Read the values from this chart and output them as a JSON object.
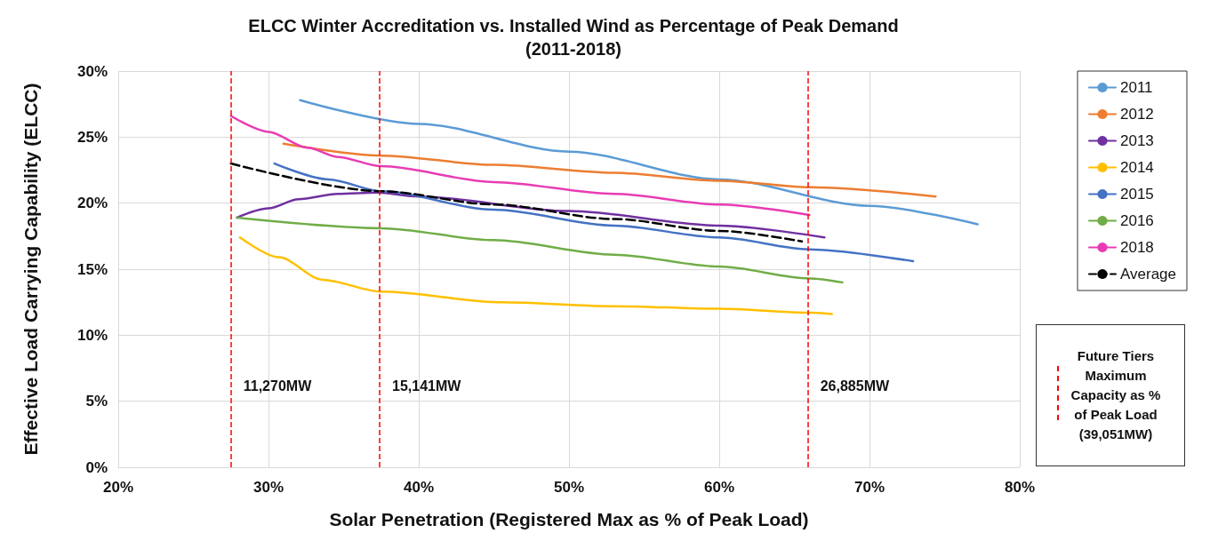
{
  "chart_data": {
    "type": "line",
    "title": "ELCC Winter Accreditation vs. Installed Wind as Percentage of Peak Demand",
    "subtitle": "(2011-2018)",
    "xlabel": "Solar Penetration (Registered Max as % of Peak Load)",
    "ylabel": "Effective Load Carrying Capability (ELCC)",
    "xlim": [
      20,
      80
    ],
    "xticks": [
      {
        "value": 20,
        "label": "20%"
      },
      {
        "value": 30,
        "label": "30%"
      },
      {
        "value": 40,
        "label": "40%"
      },
      {
        "value": 50,
        "label": "50%"
      },
      {
        "value": 60,
        "label": "60%"
      },
      {
        "value": 70,
        "label": "70%"
      },
      {
        "value": 80,
        "label": "80%"
      }
    ],
    "ylim": [
      0,
      30
    ],
    "yticks": [
      {
        "value": 0,
        "label": "0%"
      },
      {
        "value": 5,
        "label": "5%"
      },
      {
        "value": 10,
        "label": "10%"
      },
      {
        "value": 15,
        "label": "15%"
      },
      {
        "value": 20,
        "label": "20%"
      },
      {
        "value": 25,
        "label": "25%"
      },
      {
        "value": 30,
        "label": "30%"
      }
    ],
    "grid": true,
    "legend": "right",
    "marker": "none",
    "line_style": "solid",
    "series": [
      {
        "name": "2011",
        "color": "#5b9bd5",
        "x": [
          32.1,
          40,
          50,
          60,
          70,
          77.2
        ],
        "values": [
          27.8,
          26.0,
          23.9,
          21.8,
          19.8,
          18.4
        ]
      },
      {
        "name": "2012",
        "color": "#ed7d31",
        "x": [
          31,
          37.5,
          45,
          53,
          60,
          66,
          74.4
        ],
        "values": [
          24.5,
          23.6,
          22.9,
          22.3,
          21.7,
          21.2,
          20.5
        ]
      },
      {
        "name": "2013",
        "color": "#7030a0",
        "x": [
          27.9,
          30,
          32,
          34.6,
          37.2,
          40,
          50,
          60,
          67
        ],
        "values": [
          18.9,
          19.6,
          20.3,
          20.7,
          20.8,
          20.5,
          19.4,
          18.3,
          17.4
        ]
      },
      {
        "name": "2014",
        "color": "#ffc000",
        "x": [
          28.1,
          30.7,
          33.6,
          37.5,
          45.5,
          53,
          60,
          66,
          67.5
        ],
        "values": [
          17.4,
          15.9,
          14.2,
          13.3,
          12.5,
          12.2,
          12.0,
          11.7,
          11.6
        ]
      },
      {
        "name": "2015",
        "color": "#4472c4",
        "x": [
          30.4,
          34,
          37.5,
          45,
          53,
          60,
          66,
          72.9
        ],
        "values": [
          23.0,
          21.8,
          20.9,
          19.5,
          18.3,
          17.4,
          16.5,
          15.6
        ]
      },
      {
        "name": "2016",
        "color": "#70ad47",
        "x": [
          27.9,
          37.5,
          45,
          53,
          60,
          66,
          68.2
        ],
        "values": [
          18.9,
          18.1,
          17.2,
          16.1,
          15.2,
          14.3,
          14.0
        ]
      },
      {
        "name": "2018",
        "color": "#e83cb4",
        "x": [
          27.5,
          30,
          32.6,
          34.6,
          37.5,
          45,
          53,
          60,
          66
        ],
        "values": [
          26.6,
          25.4,
          24.2,
          23.5,
          22.8,
          21.6,
          20.7,
          19.9,
          19.1
        ]
      },
      {
        "name": "Average",
        "color": "#000000",
        "line_style": "dashed",
        "x": [
          27.5,
          37.5,
          45,
          53,
          60,
          65.5
        ],
        "values": [
          23.0,
          20.9,
          19.9,
          18.8,
          17.9,
          17.1
        ]
      }
    ],
    "ref_lines": [
      {
        "axis": "x",
        "value": 27.5,
        "label": "11,270MW",
        "color": "#ff0000",
        "line_style": "dashed"
      },
      {
        "axis": "x",
        "value": 37.4,
        "label": "15,141MW",
        "color": "#ff0000",
        "line_style": "dashed"
      },
      {
        "axis": "x",
        "value": 65.9,
        "label": "26,885MW",
        "color": "#ff0000",
        "line_style": "dashed"
      }
    ],
    "annotations": [
      "Future Tiers Maximum Capacity as % of Peak Load (39,051MW)"
    ]
  }
}
